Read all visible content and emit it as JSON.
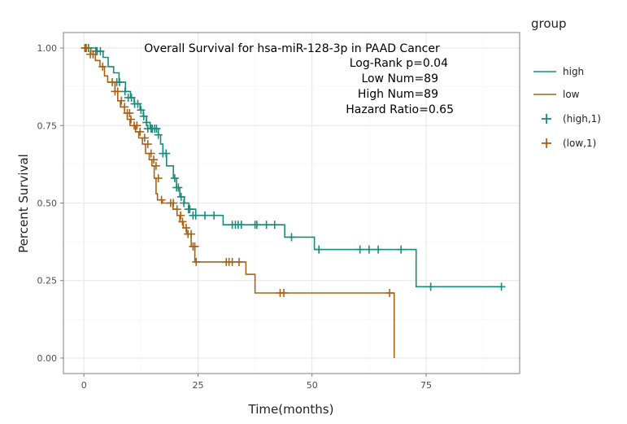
{
  "chart_data": {
    "type": "line",
    "step": true,
    "annotations": [
      "Overall Survival for hsa-miR-128-3p in PAAD Cancer",
      "Log-Rank p=0.04",
      "Low Num=89",
      "High Num=89",
      "Hazard Ratio=0.65"
    ],
    "xlabel": "Time(months)",
    "ylabel": "Percent Survival",
    "xlim": [
      -4.5,
      95.5
    ],
    "ylim": [
      -0.05,
      1.05
    ],
    "x_ticks": [
      0,
      25,
      50,
      75
    ],
    "x_tick_labels": [
      "0",
      "25",
      "50",
      "75"
    ],
    "y_ticks": [
      0,
      0.25,
      0.5,
      0.75,
      1.0
    ],
    "y_tick_labels": [
      "0.00",
      "0.25",
      "0.50",
      "0.75",
      "1.00"
    ],
    "grid": true,
    "legend": {
      "title": "group",
      "position": "right",
      "items": [
        {
          "label": "high",
          "kind": "line",
          "color": "#1a8b7a"
        },
        {
          "label": "low",
          "kind": "line",
          "color": "#a86216"
        },
        {
          "label": "(high,1)",
          "kind": "cross",
          "color": "#1a8b7a"
        },
        {
          "label": "(low,1)",
          "kind": "cross",
          "color": "#a86216"
        }
      ]
    },
    "series": [
      {
        "name": "high",
        "color": "#1a8b7a",
        "steps": [
          [
            0,
            1.0
          ],
          [
            2.8,
            0.99
          ],
          [
            4.2,
            0.97
          ],
          [
            5.3,
            0.94
          ],
          [
            6.5,
            0.92
          ],
          [
            7.7,
            0.89
          ],
          [
            9.1,
            0.86
          ],
          [
            10.2,
            0.84
          ],
          [
            11.0,
            0.82
          ],
          [
            12.3,
            0.8
          ],
          [
            13.0,
            0.78
          ],
          [
            13.7,
            0.76
          ],
          [
            14.5,
            0.74
          ],
          [
            16.3,
            0.72
          ],
          [
            16.8,
            0.69
          ],
          [
            17.3,
            0.66
          ],
          [
            18.1,
            0.62
          ],
          [
            19.6,
            0.58
          ],
          [
            20.3,
            0.55
          ],
          [
            21.0,
            0.52
          ],
          [
            22.0,
            0.5
          ],
          [
            23.0,
            0.48
          ],
          [
            24.5,
            0.46
          ],
          [
            30.5,
            0.43
          ],
          [
            44.0,
            0.39
          ],
          [
            50.5,
            0.35
          ],
          [
            72.8,
            0.23
          ],
          [
            91.5,
            0.23
          ]
        ],
        "censor_x": [
          0.4,
          1.0,
          2.6,
          2.9,
          3.6,
          7.2,
          7.8,
          9.0,
          9.7,
          10.4,
          11.1,
          11.8,
          12.5,
          13.1,
          13.7,
          14.0,
          14.7,
          15.0,
          15.5,
          15.9,
          16.3,
          17.3,
          18.0,
          19.9,
          20.3,
          20.7,
          21.3,
          21.9,
          22.9,
          23.2,
          23.9,
          24.5,
          26.5,
          28.5,
          32.5,
          33.2,
          33.8,
          34.5,
          37.5,
          37.9,
          40.0,
          41.8,
          45.5,
          51.5,
          60.5,
          62.5,
          64.5,
          69.5,
          76.0,
          91.5
        ],
        "censor_y": [
          1.0,
          1.0,
          0.99,
          0.99,
          0.99,
          0.89,
          0.89,
          0.86,
          0.84,
          0.84,
          0.82,
          0.82,
          0.8,
          0.78,
          0.76,
          0.74,
          0.74,
          0.74,
          0.74,
          0.74,
          0.72,
          0.66,
          0.66,
          0.58,
          0.55,
          0.55,
          0.52,
          0.5,
          0.48,
          0.48,
          0.46,
          0.46,
          0.46,
          0.46,
          0.43,
          0.43,
          0.43,
          0.43,
          0.43,
          0.43,
          0.43,
          0.43,
          0.39,
          0.35,
          0.35,
          0.35,
          0.35,
          0.35,
          0.23,
          0.23
        ]
      },
      {
        "name": "low",
        "color": "#a86216",
        "steps": [
          [
            0,
            1.0
          ],
          [
            1.5,
            0.98
          ],
          [
            2.5,
            0.96
          ],
          [
            3.5,
            0.94
          ],
          [
            4.5,
            0.91
          ],
          [
            5.2,
            0.89
          ],
          [
            6.8,
            0.86
          ],
          [
            7.4,
            0.83
          ],
          [
            8.0,
            0.81
          ],
          [
            8.9,
            0.79
          ],
          [
            9.5,
            0.77
          ],
          [
            10.1,
            0.75
          ],
          [
            11.3,
            0.73
          ],
          [
            12.0,
            0.71
          ],
          [
            12.8,
            0.69
          ],
          [
            13.5,
            0.66
          ],
          [
            14.3,
            0.64
          ],
          [
            14.9,
            0.62
          ],
          [
            15.4,
            0.58
          ],
          [
            15.8,
            0.53
          ],
          [
            16.1,
            0.51
          ],
          [
            17.2,
            0.5
          ],
          [
            19.5,
            0.48
          ],
          [
            20.4,
            0.46
          ],
          [
            21.0,
            0.44
          ],
          [
            21.8,
            0.42
          ],
          [
            22.5,
            0.4
          ],
          [
            23.5,
            0.36
          ],
          [
            24.3,
            0.31
          ],
          [
            35.5,
            0.27
          ],
          [
            37.5,
            0.21
          ],
          [
            68.0,
            0.0
          ]
        ],
        "censor_x": [
          0.2,
          0.5,
          1.4,
          2.0,
          4.1,
          6.2,
          6.8,
          7.4,
          8.2,
          8.9,
          9.5,
          10.0,
          10.3,
          11.0,
          11.6,
          12.3,
          13.3,
          14.0,
          14.7,
          15.3,
          15.8,
          16.3,
          17.0,
          19.0,
          19.6,
          20.4,
          21.2,
          21.6,
          22.4,
          22.8,
          23.5,
          23.9,
          24.3,
          24.6,
          31.2,
          31.8,
          32.5,
          34.0,
          43.0,
          43.8,
          67.0
        ],
        "censor_y": [
          1.0,
          1.0,
          0.98,
          0.98,
          0.94,
          0.89,
          0.86,
          0.86,
          0.83,
          0.81,
          0.79,
          0.79,
          0.77,
          0.75,
          0.75,
          0.73,
          0.71,
          0.69,
          0.66,
          0.64,
          0.62,
          0.58,
          0.51,
          0.5,
          0.5,
          0.48,
          0.46,
          0.44,
          0.42,
          0.4,
          0.4,
          0.36,
          0.36,
          0.31,
          0.31,
          0.31,
          0.31,
          0.31,
          0.21,
          0.21,
          0.21
        ]
      }
    ]
  }
}
